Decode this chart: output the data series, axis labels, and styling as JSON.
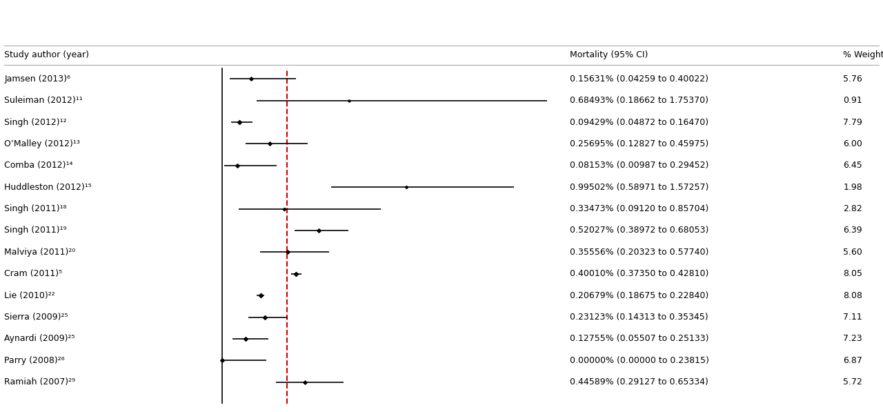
{
  "studies": [
    {
      "label": "Jamsen (2013)⁶",
      "est": 0.15631,
      "lo": 0.04259,
      "hi": 0.40022,
      "weight": "5.76",
      "ci_text": "0.15631% (0.04259 to 0.40022)",
      "wt": 5.76
    },
    {
      "label": "Suleiman (2012)¹¹",
      "est": 0.68493,
      "lo": 0.18662,
      "hi": 1.7537,
      "weight": "0.91",
      "ci_text": "0.68493% (0.18662 to 1.75370)",
      "wt": 0.91
    },
    {
      "label": "Singh (2012)¹²",
      "est": 0.09429,
      "lo": 0.04872,
      "hi": 0.1647,
      "weight": "7.79",
      "ci_text": "0.09429% (0.04872 to 0.16470)",
      "wt": 7.79
    },
    {
      "label": "O’Malley (2012)¹³",
      "est": 0.25695,
      "lo": 0.12827,
      "hi": 0.45975,
      "weight": "6.00",
      "ci_text": "0.25695% (0.12827 to 0.45975)",
      "wt": 6.0
    },
    {
      "label": "Comba (2012)¹⁴",
      "est": 0.08153,
      "lo": 0.00987,
      "hi": 0.29452,
      "weight": "6.45",
      "ci_text": "0.08153% (0.00987 to 0.29452)",
      "wt": 6.45
    },
    {
      "label": "Huddleston (2012)¹⁵",
      "est": 0.99502,
      "lo": 0.58971,
      "hi": 1.57257,
      "weight": "1.98",
      "ci_text": "0.99502% (0.58971 to 1.57257)",
      "wt": 1.98
    },
    {
      "label": "Singh (2011)¹⁸",
      "est": 0.33473,
      "lo": 0.0912,
      "hi": 0.85704,
      "weight": "2.82",
      "ci_text": "0.33473% (0.09120 to 0.85704)",
      "wt": 2.82
    },
    {
      "label": "Singh (2011)¹⁹",
      "est": 0.52027,
      "lo": 0.38972,
      "hi": 0.68053,
      "weight": "6.39",
      "ci_text": "0.52027% (0.38972 to 0.68053)",
      "wt": 6.39
    },
    {
      "label": "Malviya (2011)²⁰",
      "est": 0.35556,
      "lo": 0.20323,
      "hi": 0.5774,
      "weight": "5.60",
      "ci_text": "0.35556% (0.20323 to 0.57740)",
      "wt": 5.6
    },
    {
      "label": "Cram (2011)⁵",
      "est": 0.4001,
      "lo": 0.3735,
      "hi": 0.4281,
      "weight": "8.05",
      "ci_text": "0.40010% (0.37350 to 0.42810)",
      "wt": 8.05
    },
    {
      "label": "Lie (2010)²²",
      "est": 0.20679,
      "lo": 0.18675,
      "hi": 0.2284,
      "weight": "8.08",
      "ci_text": "0.20679% (0.18675 to 0.22840)",
      "wt": 8.08
    },
    {
      "label": "Sierra (2009)²⁵",
      "est": 0.23123,
      "lo": 0.14313,
      "hi": 0.35345,
      "weight": "7.11",
      "ci_text": "0.23123% (0.14313 to 0.35345)",
      "wt": 7.11
    },
    {
      "label": "Aynardi (2009)²⁵",
      "est": 0.12755,
      "lo": 0.05507,
      "hi": 0.25133,
      "weight": "7.23",
      "ci_text": "0.12755% (0.05507 to 0.25133)",
      "wt": 7.23
    },
    {
      "label": "Parry (2008)²⁶",
      "est": 0.0,
      "lo": 0.0,
      "hi": 0.23815,
      "weight": "6.87",
      "ci_text": "0.00000% (0.00000 to 0.23815)",
      "wt": 6.87
    },
    {
      "label": "Ramiah (2007)²⁹",
      "est": 0.44589,
      "lo": 0.29127,
      "hi": 0.65334,
      "weight": "5.72",
      "ci_text": "0.44589% (0.29127 to 0.65334)",
      "wt": 5.72
    }
  ],
  "ref_line": 0.35,
  "x_min": -0.15,
  "x_max": 1.85,
  "col_label_study": "Study author (year)",
  "col_label_mortality": "Mortality (95% CI)",
  "col_label_weight": "% Weight",
  "header_color": "#000000",
  "line_color": "#000000",
  "dashed_line_color": "#cc0000",
  "marker_color": "#000000",
  "bg_color": "#ffffff",
  "font_size": 9,
  "header_font_size": 9
}
